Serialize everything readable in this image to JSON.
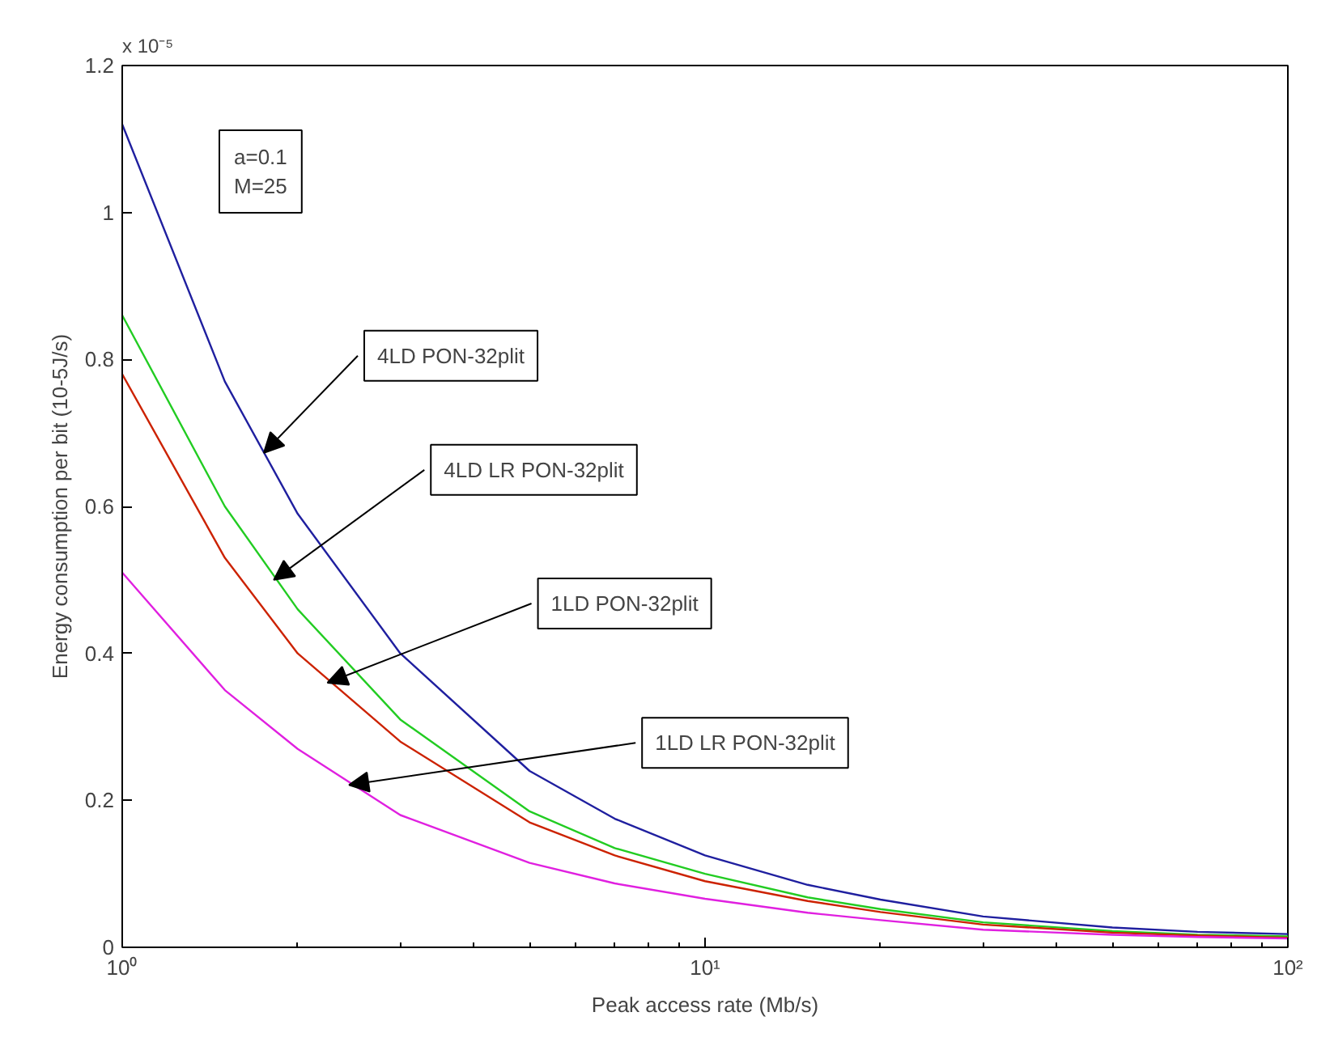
{
  "chart_data": {
    "type": "line",
    "xlabel": "Peak access rate (Mb/s)",
    "ylabel": "Energy consumption per bit (10-5J/s)",
    "log": "x",
    "xlim": [
      1,
      100
    ],
    "xticks": [
      {
        "value": 1,
        "label": "10⁰"
      },
      {
        "value": 10,
        "label": "10¹"
      },
      {
        "value": 100,
        "label": "10²"
      }
    ],
    "ylim": [
      0,
      1.2
    ],
    "yticks": [
      0,
      0.2,
      0.4,
      0.6,
      0.8,
      1,
      1.2
    ],
    "x": [
      1,
      1.5,
      2,
      3,
      5,
      7,
      10,
      15,
      20,
      30,
      50,
      70,
      100
    ],
    "series": [
      {
        "color": "#1f1f9f",
        "values": [
          1.12,
          0.77,
          0.59,
          0.4,
          0.24,
          0.175,
          0.125,
          0.085,
          0.065,
          0.042,
          0.027,
          0.021,
          0.018
        ]
      },
      {
        "color": "#22cc22",
        "values": [
          0.86,
          0.6,
          0.46,
          0.31,
          0.185,
          0.135,
          0.1,
          0.068,
          0.052,
          0.034,
          0.022,
          0.017,
          0.015
        ]
      },
      {
        "color": "#cc2200",
        "values": [
          0.78,
          0.53,
          0.4,
          0.28,
          0.17,
          0.125,
          0.09,
          0.063,
          0.048,
          0.031,
          0.02,
          0.016,
          0.013
        ]
      },
      {
        "color": "#e020e0",
        "values": [
          0.51,
          0.35,
          0.27,
          0.18,
          0.115,
          0.087,
          0.066,
          0.047,
          0.037,
          0.024,
          0.017,
          0.014,
          0.012
        ]
      }
    ],
    "annotations": [
      "x 10⁻⁵",
      "a=0.1\nM=25",
      {
        "text": "4LD PON-32plit",
        "x": 1.75,
        "y": 0.673
      },
      {
        "text": "4LD LR PON-32plit",
        "x": 1.82,
        "y": 0.5
      },
      {
        "text": "1LD PON-32plit",
        "x": 2.25,
        "y": 0.36
      },
      {
        "text": "1LD LR PON-32plit",
        "x": 2.45,
        "y": 0.221
      }
    ]
  }
}
